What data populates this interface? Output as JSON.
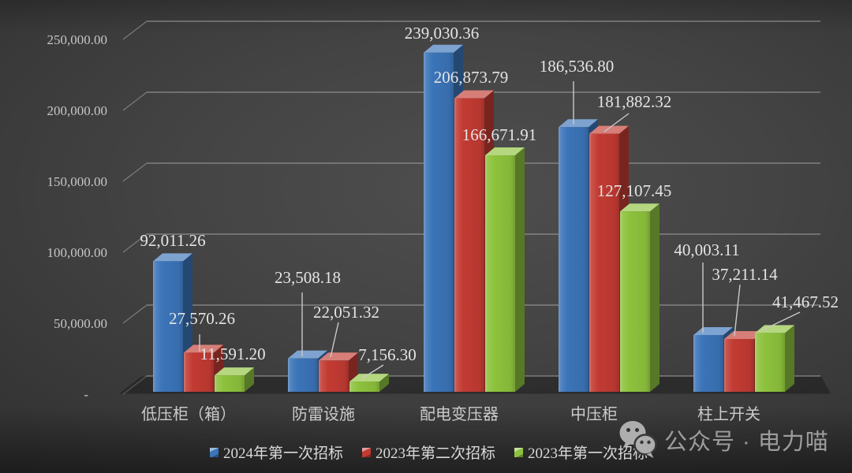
{
  "chart_data": {
    "type": "bar",
    "style": "3d-column",
    "title": "",
    "categories": [
      "低压柜（箱）",
      "防雷设施",
      "配电变压器",
      "中压柜",
      "柱上开关"
    ],
    "series": [
      {
        "name": "2024年第一次招标",
        "color": "#3B74B8",
        "values": [
          92011.26,
          23508.18,
          239030.36,
          186536.8,
          40003.11
        ],
        "labels": [
          "92,011.26",
          "23,508.18",
          "239,030.36",
          "186,536.80",
          "40,003.11"
        ]
      },
      {
        "name": "2023年第二次招标",
        "color": "#C23B33",
        "values": [
          27570.26,
          22051.32,
          206873.79,
          181882.32,
          37211.14
        ],
        "labels": [
          "27,570.26",
          "22,051.32",
          "206,873.79",
          "181,882.32",
          "37,211.14"
        ]
      },
      {
        "name": "2023年第一次招标",
        "color": "#8DC23D",
        "values": [
          11591.2,
          7156.3,
          166671.91,
          127107.45,
          41467.52
        ],
        "labels": [
          "11,591.20",
          "7,156.30",
          "166,671.91",
          "127,107.45",
          "41,467.52"
        ]
      }
    ],
    "y_axis": {
      "min": 0,
      "max": 250000,
      "step": 50000,
      "tick_values": [
        0,
        50000,
        100000,
        150000,
        200000,
        250000
      ],
      "tick_labels": [
        "-",
        "50,000.00",
        "100,000.00",
        "150,000.00",
        "200,000.00",
        "250,000.00"
      ]
    },
    "grid": true,
    "legend_position": "bottom"
  },
  "watermark": {
    "icon": "wechat-icon",
    "text": "公众号 · 电力喵"
  },
  "colors": {
    "background_center": "#4e4e4e",
    "background_edge": "#262626",
    "gridline": "#969696",
    "data_label": "#e4e4e4",
    "axis_label": "#c6c6c6",
    "legend_text": "#d9d9d9",
    "watermark_text": "#9d9d9d"
  }
}
